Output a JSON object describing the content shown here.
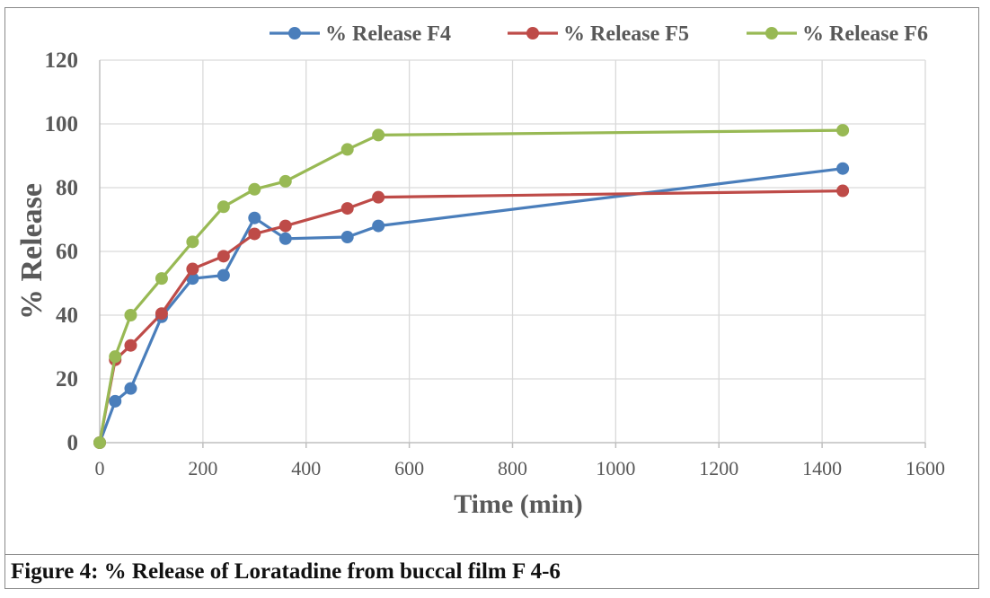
{
  "chart_data": {
    "type": "line",
    "xlabel": "Time (min)",
    "ylabel": "% Release",
    "xlim": [
      0,
      1600
    ],
    "ylim": [
      0,
      120
    ],
    "x_ticks": [
      0,
      200,
      400,
      600,
      800,
      1000,
      1200,
      1400,
      1600
    ],
    "y_ticks": [
      0,
      20,
      40,
      60,
      80,
      100,
      120
    ],
    "grid": true,
    "legend_position": "top-right",
    "series": [
      {
        "name": "% Release F4",
        "color": "#4a7ebb",
        "x": [
          0,
          30,
          60,
          120,
          180,
          240,
          300,
          360,
          480,
          540,
          1440
        ],
        "y": [
          0,
          13,
          17,
          39.5,
          51.5,
          52.5,
          70.5,
          64,
          64.5,
          68,
          86
        ]
      },
      {
        "name": "% Release F5",
        "color": "#be4b48",
        "x": [
          0,
          30,
          60,
          120,
          180,
          240,
          300,
          360,
          480,
          540,
          1440
        ],
        "y": [
          0,
          26,
          30.5,
          40.5,
          54.5,
          58.5,
          65.5,
          68,
          73.5,
          77,
          79
        ]
      },
      {
        "name": "% Release F6",
        "color": "#98b954",
        "x": [
          0,
          30,
          60,
          120,
          180,
          240,
          300,
          360,
          480,
          540,
          1440
        ],
        "y": [
          0,
          27,
          40,
          51.5,
          63,
          74,
          79.5,
          82,
          92,
          96.5,
          98
        ]
      }
    ]
  },
  "caption": "Figure 4: % Release of Loratadine from buccal film F 4-6"
}
